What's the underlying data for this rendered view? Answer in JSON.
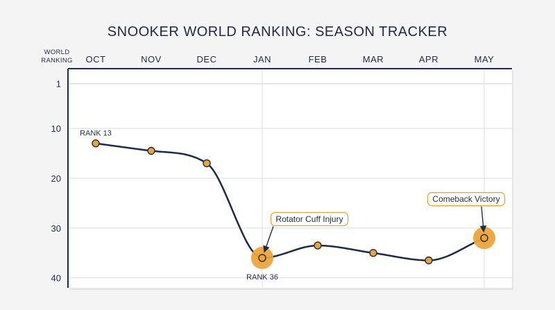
{
  "chart_data": {
    "type": "line",
    "title": "SNOOKER WORLD RANKING: SEASON TRACKER",
    "ylabel_lines": [
      "WORLD",
      "RANKING"
    ],
    "categories": [
      "OCT",
      "NOV",
      "DEC",
      "JAN",
      "FEB",
      "MAR",
      "APR",
      "MAY"
    ],
    "values": [
      13,
      14.5,
      17,
      36,
      33.5,
      35,
      36.5,
      32
    ],
    "y_ticks": [
      1,
      10,
      20,
      30,
      40
    ],
    "ylim": [
      -2,
      42
    ],
    "y_inverted": true,
    "grid": true,
    "annotations": [
      {
        "category": "OCT",
        "label": "RANK 13",
        "placement": "above"
      },
      {
        "category": "JAN",
        "label": "RANK 36",
        "placement": "below"
      }
    ],
    "callouts": [
      {
        "category": "JAN",
        "label": "Rotator Cuff Injury"
      },
      {
        "category": "MAY",
        "label": "Comeback Victory"
      }
    ],
    "highlighted": [
      "JAN",
      "MAY"
    ],
    "colors": {
      "line": "#1e2a4a",
      "marker": "#eda437",
      "highlight": "#eda437",
      "grid": "#d9dde3",
      "axis": "#1e2a4a",
      "panel": "#ffffff"
    }
  }
}
